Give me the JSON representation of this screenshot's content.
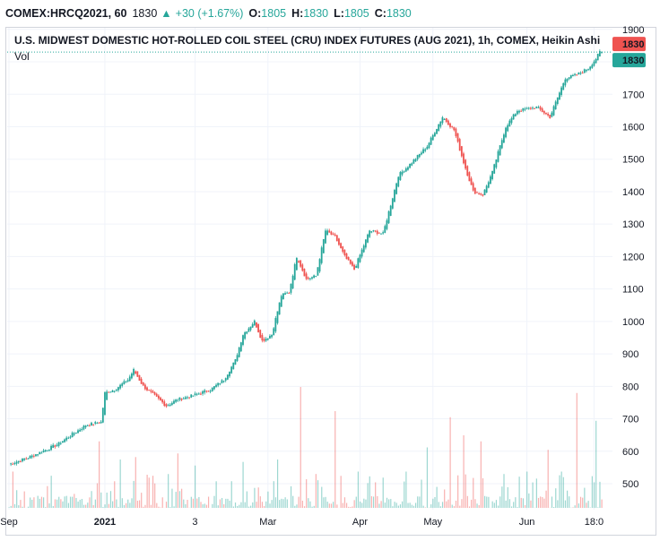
{
  "header": {
    "symbol": "COMEX:HRCQ2021, 60",
    "last": "1830",
    "change_arrow": "▲",
    "change": "+30 (+1.67%)",
    "open_label": "O:",
    "open": "1805",
    "high_label": "H:",
    "high": "1830",
    "low_label": "L:",
    "low": "1805",
    "close_label": "C:",
    "close": "1830"
  },
  "chart_title": "U.S. MIDWEST DOMESTIC HOT-ROLLED COIL STEEL (CRU) INDEX FUTURES (AUG 2021), 1h, COMEX, Heikin Ashi",
  "volume_label": "Vol",
  "price_tags": [
    {
      "text": "1830",
      "color": "#ef5350"
    },
    {
      "text": "1830",
      "color": "#26a69a"
    }
  ],
  "colors": {
    "up": "#26a69a",
    "down": "#ef5350",
    "grid": "#f0f3fa",
    "dotted": "#26a69a"
  },
  "chart_data": {
    "type": "candlestick",
    "style": "Heikin Ashi",
    "interval": "1h",
    "y_axis": {
      "ticks": [
        500,
        600,
        700,
        800,
        900,
        1000,
        1100,
        1200,
        1300,
        1400,
        1500,
        1600,
        1700,
        1800,
        1900
      ],
      "range": [
        420,
        1905
      ]
    },
    "x_axis": {
      "labels": [
        {
          "text": "Sep",
          "idx": 0,
          "bold": false
        },
        {
          "text": "2021",
          "idx": 50,
          "bold": true
        },
        {
          "text": "3",
          "idx": 97,
          "bold": false
        },
        {
          "text": "Mar",
          "idx": 135,
          "bold": false
        },
        {
          "text": "Apr",
          "idx": 183,
          "bold": false
        },
        {
          "text": "May",
          "idx": 221,
          "bold": false
        },
        {
          "text": "Jun",
          "idx": 270,
          "bold": false
        },
        {
          "text": "18:0",
          "idx": 305,
          "bold": false
        }
      ]
    },
    "price_path_anchors": [
      [
        0,
        560
      ],
      [
        10,
        580
      ],
      [
        25,
        620
      ],
      [
        40,
        680
      ],
      [
        48,
        690
      ],
      [
        50,
        780
      ],
      [
        55,
        790
      ],
      [
        62,
        820
      ],
      [
        65,
        850
      ],
      [
        70,
        800
      ],
      [
        78,
        760
      ],
      [
        82,
        740
      ],
      [
        88,
        760
      ],
      [
        95,
        770
      ],
      [
        105,
        790
      ],
      [
        112,
        820
      ],
      [
        118,
        880
      ],
      [
        122,
        960
      ],
      [
        128,
        1000
      ],
      [
        132,
        940
      ],
      [
        137,
        960
      ],
      [
        142,
        1080
      ],
      [
        146,
        1090
      ],
      [
        150,
        1200
      ],
      [
        155,
        1130
      ],
      [
        160,
        1140
      ],
      [
        165,
        1280
      ],
      [
        170,
        1260
      ],
      [
        175,
        1200
      ],
      [
        180,
        1160
      ],
      [
        188,
        1280
      ],
      [
        195,
        1270
      ],
      [
        203,
        1450
      ],
      [
        210,
        1490
      ],
      [
        218,
        1540
      ],
      [
        226,
        1630
      ],
      [
        232,
        1590
      ],
      [
        237,
        1490
      ],
      [
        242,
        1400
      ],
      [
        247,
        1390
      ],
      [
        252,
        1460
      ],
      [
        259,
        1600
      ],
      [
        265,
        1650
      ],
      [
        275,
        1660
      ],
      [
        282,
        1630
      ],
      [
        290,
        1750
      ],
      [
        296,
        1760
      ],
      [
        302,
        1780
      ],
      [
        306,
        1810
      ],
      [
        308,
        1830
      ]
    ],
    "volume_spikes": [
      [
        2,
        0.3
      ],
      [
        20,
        0.18
      ],
      [
        47,
        0.55
      ],
      [
        58,
        0.4
      ],
      [
        66,
        0.42
      ],
      [
        73,
        0.25
      ],
      [
        88,
        0.45
      ],
      [
        97,
        0.35
      ],
      [
        108,
        0.22
      ],
      [
        122,
        0.38
      ],
      [
        140,
        0.4
      ],
      [
        152,
        1.0
      ],
      [
        160,
        0.28
      ],
      [
        170,
        0.8
      ],
      [
        182,
        0.3
      ],
      [
        195,
        0.25
      ],
      [
        207,
        0.3
      ],
      [
        218,
        0.5
      ],
      [
        230,
        0.75
      ],
      [
        237,
        0.6
      ],
      [
        246,
        0.55
      ],
      [
        258,
        0.28
      ],
      [
        270,
        0.3
      ],
      [
        281,
        0.48
      ],
      [
        288,
        0.3
      ],
      [
        296,
        0.95
      ],
      [
        306,
        0.72
      ]
    ],
    "last_price": 1830
  }
}
